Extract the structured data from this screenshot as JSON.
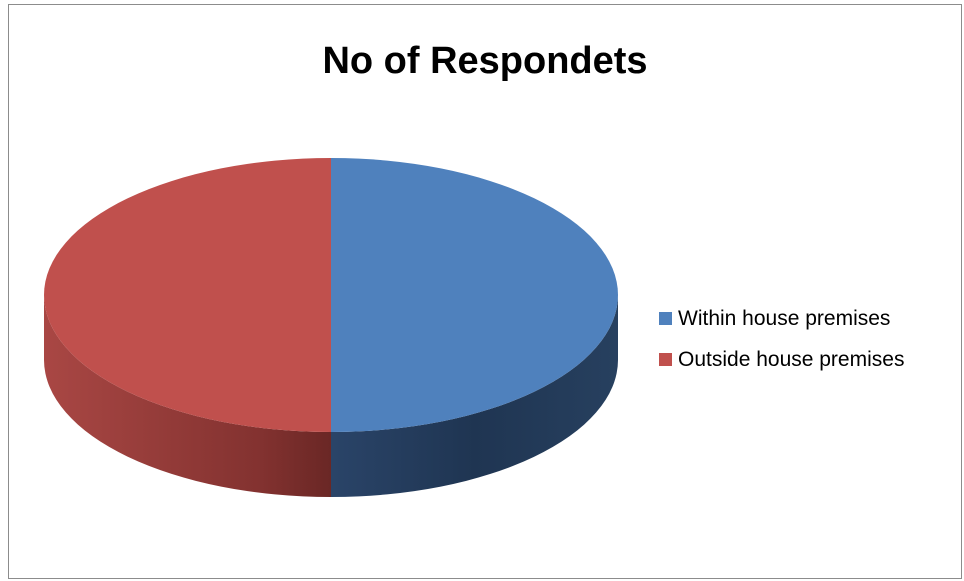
{
  "chart_data": {
    "type": "pie",
    "title": "No of Respondets",
    "legend_position": "right",
    "slices": [
      {
        "label": "Within house premises",
        "value": 50,
        "color": "#4f81bd",
        "side_color": "#1f3552"
      },
      {
        "label": "Outside house premises",
        "value": 50,
        "color": "#c0504d",
        "side_color": "#7e2e2c"
      }
    ]
  }
}
